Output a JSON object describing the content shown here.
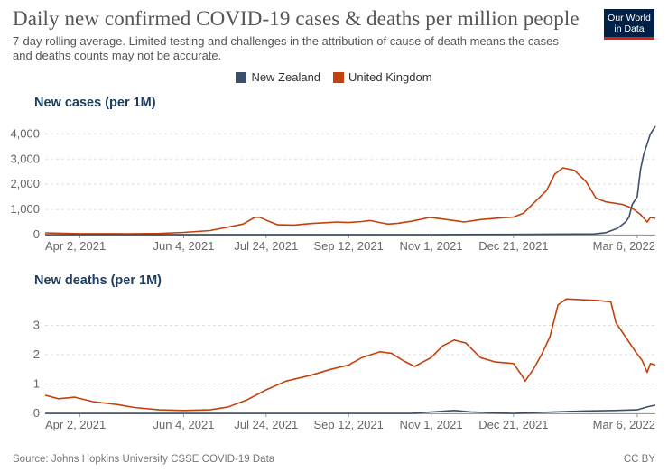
{
  "header": {
    "title": "Daily new confirmed COVID-19 cases & deaths per million people",
    "subtitle": "7-day rolling average. Limited testing and challenges in the attribution of cause of death means the cases and deaths counts may not be accurate.",
    "logo_line1": "Our World",
    "logo_line2": "in Data"
  },
  "legend": [
    {
      "name": "New Zealand",
      "color": "#3b4f6b"
    },
    {
      "name": "United Kingdom",
      "color": "#c2410c"
    }
  ],
  "footer": {
    "source": "Source: Johns Hopkins University CSSE COVID-19 Data",
    "license": "CC BY"
  },
  "chart_data": [
    {
      "type": "line",
      "title": "New cases (per 1M)",
      "x_ticks": [
        "Apr 2, 2021",
        "Jun 4, 2021",
        "Jul 24, 2021",
        "Sep 12, 2021",
        "Nov 1, 2021",
        "Dec 21, 2021",
        "Mar 6, 2022"
      ],
      "y_ticks": [
        0,
        1000,
        2000,
        3000,
        4000
      ],
      "y_tick_labels": [
        "0",
        "1,000",
        "2,000",
        "3,000",
        "4,000"
      ],
      "ylim": [
        0,
        4300
      ],
      "xlim": [
        "2021-03-12",
        "2022-03-17"
      ],
      "grid": true,
      "series": [
        {
          "name": "United Kingdom",
          "color": "#c2410c",
          "points": [
            [
              "2021-03-12",
              70
            ],
            [
              "2021-04-02",
              40
            ],
            [
              "2021-05-01",
              35
            ],
            [
              "2021-05-20",
              45
            ],
            [
              "2021-06-04",
              90
            ],
            [
              "2021-06-20",
              160
            ],
            [
              "2021-07-01",
              300
            ],
            [
              "2021-07-10",
              420
            ],
            [
              "2021-07-17",
              680
            ],
            [
              "2021-07-20",
              690
            ],
            [
              "2021-07-25",
              550
            ],
            [
              "2021-07-31",
              390
            ],
            [
              "2021-08-10",
              380
            ],
            [
              "2021-08-20",
              440
            ],
            [
              "2021-08-31",
              480
            ],
            [
              "2021-09-05",
              500
            ],
            [
              "2021-09-12",
              480
            ],
            [
              "2021-09-20",
              520
            ],
            [
              "2021-09-25",
              560
            ],
            [
              "2021-10-01",
              480
            ],
            [
              "2021-10-06",
              420
            ],
            [
              "2021-10-12",
              450
            ],
            [
              "2021-10-20",
              530
            ],
            [
              "2021-10-31",
              680
            ],
            [
              "2021-11-05",
              650
            ],
            [
              "2021-11-15",
              560
            ],
            [
              "2021-11-21",
              500
            ],
            [
              "2021-12-01",
              600
            ],
            [
              "2021-12-10",
              650
            ],
            [
              "2021-12-21",
              700
            ],
            [
              "2021-12-27",
              850
            ],
            [
              "2022-01-03",
              1300
            ],
            [
              "2022-01-10",
              1750
            ],
            [
              "2022-01-15",
              2400
            ],
            [
              "2022-01-20",
              2650
            ],
            [
              "2022-01-27",
              2550
            ],
            [
              "2022-02-03",
              2100
            ],
            [
              "2022-02-09",
              1450
            ],
            [
              "2022-02-15",
              1300
            ],
            [
              "2022-02-25",
              1200
            ],
            [
              "2022-03-03",
              1050
            ],
            [
              "2022-03-08",
              800
            ],
            [
              "2022-03-12",
              500
            ],
            [
              "2022-03-14",
              680
            ],
            [
              "2022-03-17",
              650
            ]
          ]
        },
        {
          "name": "New Zealand",
          "color": "#3b4f6b",
          "points": [
            [
              "2021-03-12",
              0
            ],
            [
              "2021-11-01",
              5
            ],
            [
              "2021-12-21",
              10
            ],
            [
              "2022-02-08",
              30
            ],
            [
              "2022-02-15",
              80
            ],
            [
              "2022-02-22",
              250
            ],
            [
              "2022-02-27",
              500
            ],
            [
              "2022-03-01",
              700
            ],
            [
              "2022-03-03",
              1200
            ],
            [
              "2022-03-06",
              1500
            ],
            [
              "2022-03-08",
              2600
            ],
            [
              "2022-03-10",
              3200
            ],
            [
              "2022-03-12",
              3600
            ],
            [
              "2022-03-14",
              4000
            ],
            [
              "2022-03-17",
              4300
            ]
          ]
        }
      ]
    },
    {
      "type": "line",
      "title": "New deaths (per 1M)",
      "x_ticks": [
        "Apr 2, 2021",
        "Jun 4, 2021",
        "Jul 24, 2021",
        "Sep 12, 2021",
        "Nov 1, 2021",
        "Dec 21, 2021",
        "Mar 6, 2022"
      ],
      "y_ticks": [
        0,
        1,
        2,
        3
      ],
      "y_tick_labels": [
        "0",
        "1",
        "2",
        "3"
      ],
      "ylim": [
        0,
        4.0
      ],
      "xlim": [
        "2021-03-12",
        "2022-03-17"
      ],
      "grid": true,
      "series": [
        {
          "name": "United Kingdom",
          "color": "#c2410c",
          "points": [
            [
              "2021-03-12",
              0.62
            ],
            [
              "2021-03-20",
              0.5
            ],
            [
              "2021-03-30",
              0.55
            ],
            [
              "2021-04-10",
              0.4
            ],
            [
              "2021-04-25",
              0.3
            ],
            [
              "2021-05-05",
              0.2
            ],
            [
              "2021-05-20",
              0.12
            ],
            [
              "2021-06-04",
              0.1
            ],
            [
              "2021-06-20",
              0.12
            ],
            [
              "2021-07-01",
              0.22
            ],
            [
              "2021-07-12",
              0.45
            ],
            [
              "2021-07-24",
              0.8
            ],
            [
              "2021-08-05",
              1.1
            ],
            [
              "2021-08-20",
              1.3
            ],
            [
              "2021-09-01",
              1.5
            ],
            [
              "2021-09-12",
              1.65
            ],
            [
              "2021-09-20",
              1.9
            ],
            [
              "2021-10-01",
              2.1
            ],
            [
              "2021-10-08",
              2.05
            ],
            [
              "2021-10-15",
              1.8
            ],
            [
              "2021-10-22",
              1.6
            ],
            [
              "2021-11-01",
              1.9
            ],
            [
              "2021-11-08",
              2.3
            ],
            [
              "2021-11-15",
              2.5
            ],
            [
              "2021-11-22",
              2.4
            ],
            [
              "2021-12-01",
              1.9
            ],
            [
              "2021-12-10",
              1.75
            ],
            [
              "2021-12-21",
              1.7
            ],
            [
              "2021-12-26",
              1.3
            ],
            [
              "2021-12-28",
              1.1
            ],
            [
              "2022-01-02",
              1.5
            ],
            [
              "2022-01-07",
              2.0
            ],
            [
              "2022-01-12",
              2.6
            ],
            [
              "2022-01-17",
              3.7
            ],
            [
              "2022-01-22",
              3.9
            ],
            [
              "2022-02-10",
              3.85
            ],
            [
              "2022-02-18",
              3.8
            ],
            [
              "2022-02-21",
              3.1
            ],
            [
              "2022-02-27",
              2.6
            ],
            [
              "2022-03-05",
              2.1
            ],
            [
              "2022-03-09",
              1.8
            ],
            [
              "2022-03-12",
              1.4
            ],
            [
              "2022-03-14",
              1.7
            ],
            [
              "2022-03-17",
              1.65
            ]
          ]
        },
        {
          "name": "New Zealand",
          "color": "#3b4f6b",
          "points": [
            [
              "2021-03-12",
              0
            ],
            [
              "2021-10-20",
              0
            ],
            [
              "2021-11-15",
              0.1
            ],
            [
              "2021-11-25",
              0.05
            ],
            [
              "2021-12-10",
              0.02
            ],
            [
              "2021-12-21",
              0
            ],
            [
              "2022-01-15",
              0.05
            ],
            [
              "2022-02-01",
              0.08
            ],
            [
              "2022-02-20",
              0.1
            ],
            [
              "2022-03-06",
              0.12
            ],
            [
              "2022-03-12",
              0.22
            ],
            [
              "2022-03-17",
              0.28
            ]
          ]
        }
      ]
    }
  ]
}
